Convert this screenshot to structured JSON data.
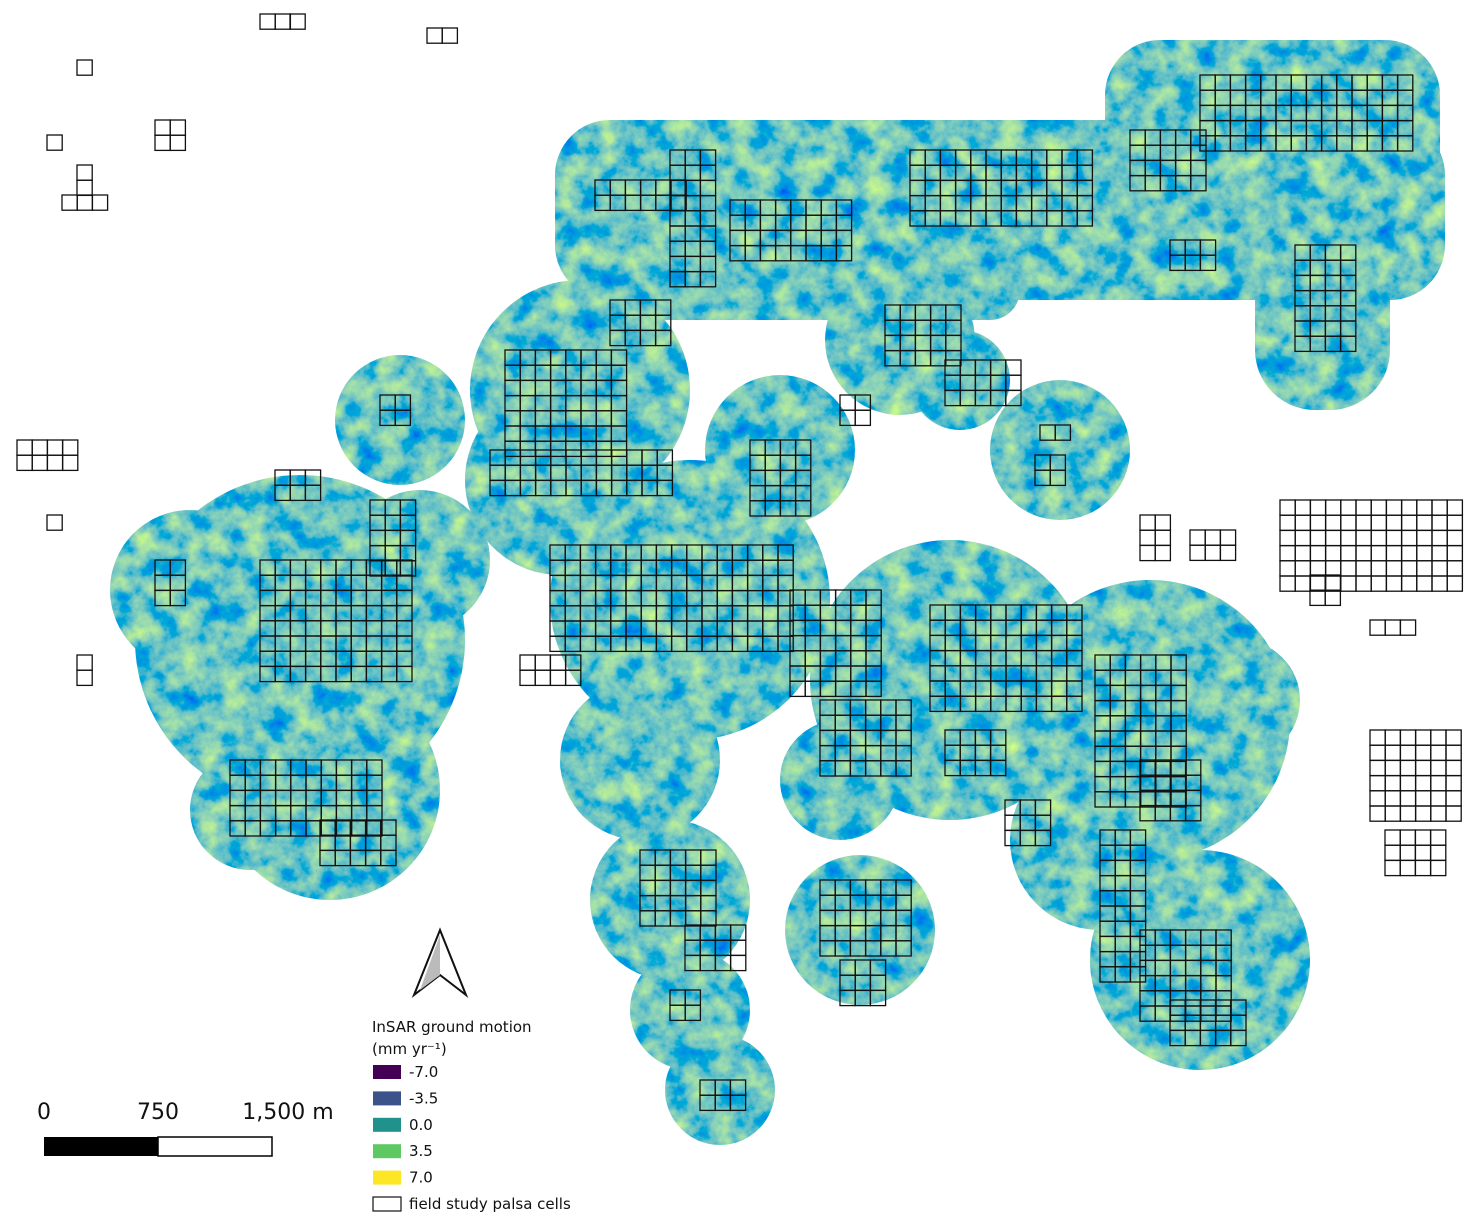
{
  "legend": {
    "title": "InSAR ground motion",
    "units": "(mm  yr⁻¹)",
    "entries": [
      {
        "label": "-7.0",
        "color": "#440154"
      },
      {
        "label": "-3.5",
        "color": "#3b528b"
      },
      {
        "label": "0.0",
        "color": "#21918c"
      },
      {
        "label": "3.5",
        "color": "#5ec962"
      },
      {
        "label": "7.0",
        "color": "#fde725"
      },
      {
        "label": "field study palsa cells",
        "color": "#ffffff"
      }
    ]
  },
  "scale_bar": {
    "labels": [
      "0",
      "750",
      "1,500 m"
    ]
  }
}
